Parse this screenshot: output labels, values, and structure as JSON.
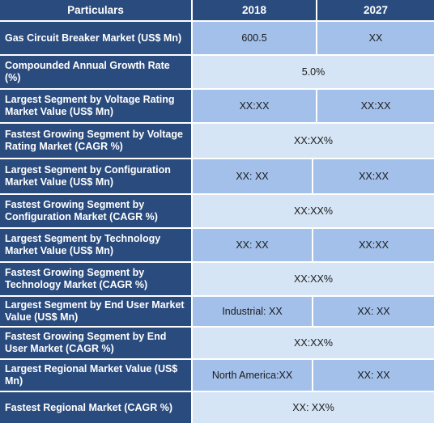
{
  "header": {
    "particulars": "Particulars",
    "col_2018": "2018",
    "col_2027": "2027"
  },
  "rows": [
    {
      "label": "Gas Circuit Breaker Market (US$ Mn)",
      "v2018": "600.5",
      "v2027": "XX"
    },
    {
      "label": "Compounded Annual Growth Rate (%)",
      "merged": "5.0%"
    },
    {
      "label": "Largest Segment by Voltage Rating Market Value (US$ Mn)",
      "v2018": "XX:XX",
      "v2027": "XX:XX"
    },
    {
      "label": "Fastest Growing Segment by Voltage Rating Market (CAGR %)",
      "merged": "XX:XX%"
    },
    {
      "label": "Largest Segment by Configuration Market Value (US$ Mn)",
      "v2018": "XX: XX",
      "v2027": "XX:XX"
    },
    {
      "label": "Fastest Growing Segment by Configuration Market (CAGR %)",
      "merged": "XX:XX%"
    },
    {
      "label": "Largest Segment by Technology Market Value (US$ Mn)",
      "v2018": "XX: XX",
      "v2027": "XX:XX"
    },
    {
      "label": "Fastest Growing Segment by Technology Market (CAGR %)",
      "merged": "XX:XX%"
    },
    {
      "label": "Largest Segment by End User Market Value (US$ Mn)",
      "v2018": "Industrial: XX",
      "v2027": "XX: XX"
    },
    {
      "label": "Fastest Growing Segment by End User Market (CAGR %)",
      "merged": "XX:XX%"
    },
    {
      "label": "Largest Regional Market Value (US$ Mn)",
      "v2018": "North America:XX",
      "v2027": "XX: XX"
    },
    {
      "label": "Fastest Regional Market (CAGR %)",
      "merged": "XX: XX%"
    }
  ]
}
